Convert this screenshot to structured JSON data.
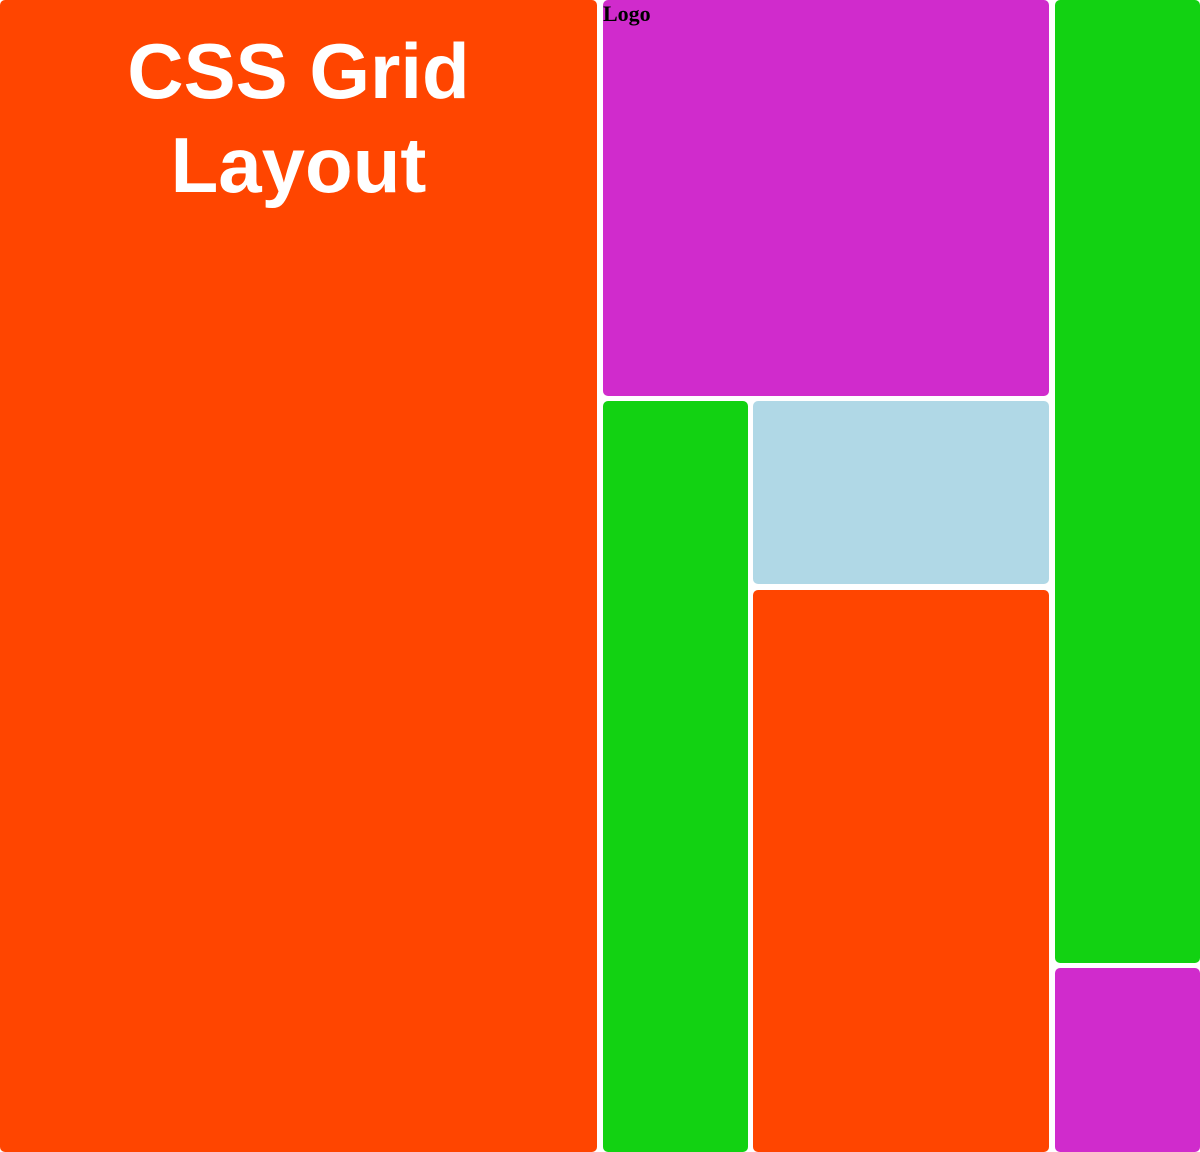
{
  "title": "CSS Grid Layout",
  "logo": "Logo",
  "colors": {
    "orange": "#ff4500",
    "purple": "#d02bcc",
    "green": "#12d212",
    "light_blue": "#b0d8e6",
    "title_text": "#ffffff",
    "logo_text": "#000000"
  }
}
